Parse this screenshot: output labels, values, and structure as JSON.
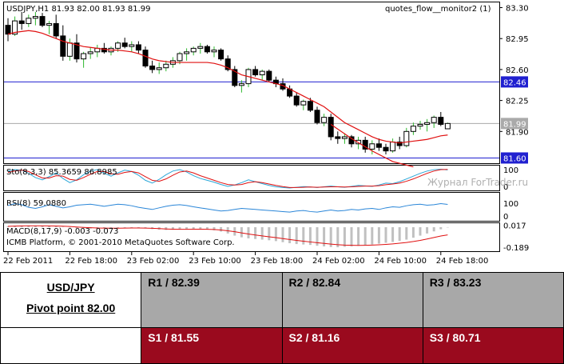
{
  "chart_data": {
    "type": "candlestick",
    "title": "USDJPY,H1  81.93 82.00 81.93 81.99",
    "indicator_label": "quotes_flow__monitor2 (1)",
    "price_ticks": [
      "83.30",
      "82.95",
      "82.60",
      "82.25",
      "81.90"
    ],
    "price_range": [
      81.55,
      83.35
    ],
    "h_lines": [
      {
        "label": "82.46",
        "value": 82.46,
        "color": "#2020d0"
      },
      {
        "label": "81.60",
        "value": 81.6,
        "color": "#2020d0"
      },
      {
        "label": "81.99",
        "value": 81.99,
        "color": "#aaaaaa"
      }
    ],
    "candles": [
      [
        83.1,
        83.18,
        82.92,
        83.0
      ],
      [
        83.0,
        83.2,
        82.98,
        83.15
      ],
      [
        83.15,
        83.25,
        83.05,
        83.12
      ],
      [
        83.12,
        83.22,
        83.08,
        83.18
      ],
      [
        83.18,
        83.25,
        83.1,
        83.2
      ],
      [
        83.2,
        83.24,
        83.08,
        83.1
      ],
      [
        83.1,
        83.15,
        83.0,
        83.12
      ],
      [
        83.12,
        83.22,
        82.95,
        82.98
      ],
      [
        82.98,
        83.1,
        82.7,
        82.75
      ],
      [
        82.75,
        82.95,
        82.7,
        82.9
      ],
      [
        82.9,
        83.0,
        82.68,
        82.72
      ],
      [
        82.72,
        82.8,
        82.62,
        82.78
      ],
      [
        82.78,
        82.85,
        82.72,
        82.8
      ],
      [
        82.8,
        82.88,
        82.74,
        82.84
      ],
      [
        82.84,
        82.9,
        82.78,
        82.8
      ],
      [
        82.8,
        82.86,
        82.76,
        82.84
      ],
      [
        82.84,
        82.92,
        82.8,
        82.9
      ],
      [
        82.9,
        82.96,
        82.84,
        82.86
      ],
      [
        82.86,
        82.92,
        82.8,
        82.88
      ],
      [
        82.88,
        82.92,
        82.78,
        82.82
      ],
      [
        82.82,
        82.86,
        82.62,
        82.64
      ],
      [
        82.64,
        82.7,
        82.56,
        82.6
      ],
      [
        82.6,
        82.68,
        82.55,
        82.62
      ],
      [
        82.62,
        82.7,
        82.58,
        82.66
      ],
      [
        82.66,
        82.74,
        82.62,
        82.7
      ],
      [
        82.7,
        82.8,
        82.66,
        82.78
      ],
      [
        82.78,
        82.84,
        82.7,
        82.8
      ],
      [
        82.8,
        82.86,
        82.76,
        82.84
      ],
      [
        82.84,
        82.9,
        82.78,
        82.86
      ],
      [
        82.86,
        82.88,
        82.78,
        82.8
      ],
      [
        82.8,
        82.86,
        82.74,
        82.82
      ],
      [
        82.82,
        82.84,
        82.7,
        82.72
      ],
      [
        82.72,
        82.76,
        82.58,
        82.6
      ],
      [
        82.6,
        82.64,
        82.4,
        82.42
      ],
      [
        82.42,
        82.48,
        82.34,
        82.44
      ],
      [
        82.44,
        82.62,
        82.4,
        82.6
      ],
      [
        82.6,
        82.64,
        82.52,
        82.54
      ],
      [
        82.54,
        82.6,
        82.48,
        82.58
      ],
      [
        82.58,
        82.6,
        82.46,
        82.48
      ],
      [
        82.48,
        82.52,
        82.4,
        82.44
      ],
      [
        82.44,
        82.5,
        82.36,
        82.38
      ],
      [
        82.38,
        82.42,
        82.28,
        82.3
      ],
      [
        82.3,
        82.34,
        82.18,
        82.2
      ],
      [
        82.2,
        82.26,
        82.14,
        82.24
      ],
      [
        82.24,
        82.28,
        82.12,
        82.14
      ],
      [
        82.14,
        82.18,
        81.98,
        82.0
      ],
      [
        82.0,
        82.1,
        81.96,
        82.06
      ],
      [
        82.06,
        82.1,
        81.8,
        81.84
      ],
      [
        81.84,
        81.9,
        81.76,
        81.82
      ],
      [
        81.82,
        81.88,
        81.76,
        81.84
      ],
      [
        81.84,
        81.86,
        81.72,
        81.76
      ],
      [
        81.76,
        81.84,
        81.7,
        81.8
      ],
      [
        81.8,
        81.84,
        81.66,
        81.7
      ],
      [
        81.7,
        81.8,
        81.64,
        81.76
      ],
      [
        81.76,
        81.82,
        81.68,
        81.72
      ],
      [
        81.72,
        81.76,
        81.64,
        81.68
      ],
      [
        81.68,
        81.82,
        81.66,
        81.78
      ],
      [
        81.78,
        81.84,
        81.7,
        81.74
      ],
      [
        81.74,
        81.94,
        81.72,
        81.9
      ],
      [
        81.9,
        82.0,
        81.86,
        81.96
      ],
      [
        81.96,
        82.02,
        81.92,
        81.98
      ],
      [
        81.98,
        82.04,
        81.9,
        82.0
      ],
      [
        82.0,
        82.08,
        81.94,
        82.06
      ],
      [
        82.06,
        82.12,
        81.96,
        81.98
      ],
      [
        81.93,
        82.0,
        81.93,
        81.99
      ]
    ],
    "ma_red": [
      83.0,
      83.02,
      83.03,
      83.04,
      83.03,
      83.01,
      82.98,
      82.95,
      82.92,
      82.9,
      82.88,
      82.86,
      82.85,
      82.84,
      82.83,
      82.82,
      82.82,
      82.81,
      82.8,
      82.78,
      82.75,
      82.72,
      82.7,
      82.69,
      82.68,
      82.68,
      82.68,
      82.68,
      82.68,
      82.68,
      82.67,
      82.65,
      82.62,
      82.58,
      82.54,
      82.52,
      82.5,
      82.48,
      82.46,
      82.44,
      82.42,
      82.38,
      82.34,
      82.3,
      82.26,
      82.22,
      82.18,
      82.12,
      82.06,
      82.0,
      81.96,
      81.92,
      81.88,
      81.84,
      81.81,
      81.79,
      81.78,
      81.77,
      81.78,
      81.79,
      81.8,
      81.81,
      81.83,
      81.85,
      81.86
    ],
    "ma_red_tail": [
      [
        47,
        81.98
      ],
      [
        50,
        81.82
      ],
      [
        53,
        81.68
      ],
      [
        56,
        81.56
      ],
      [
        59,
        81.5
      ]
    ],
    "sto": {
      "label": "Sto(8,3,3) 85.3659 86.8985",
      "ticks": [
        "100",
        "0"
      ],
      "main": [
        80,
        86,
        84,
        70,
        52,
        42,
        56,
        72,
        48,
        30,
        42,
        64,
        80,
        86,
        70,
        58,
        72,
        84,
        78,
        62,
        40,
        28,
        44,
        64,
        80,
        86,
        76,
        60,
        48,
        40,
        32,
        22,
        14,
        20,
        30,
        42,
        34,
        26,
        18,
        12,
        9,
        7,
        10,
        13,
        11,
        9,
        12,
        15,
        12,
        10,
        14,
        18,
        16,
        14,
        20,
        28,
        26,
        34,
        46,
        58,
        70,
        80,
        86,
        88,
        85
      ],
      "signal": [
        74,
        80,
        84,
        78,
        64,
        50,
        50,
        60,
        58,
        44,
        40,
        52,
        66,
        78,
        78,
        68,
        66,
        74,
        78,
        72,
        56,
        40,
        36,
        46,
        62,
        76,
        80,
        72,
        60,
        50,
        40,
        30,
        22,
        20,
        22,
        30,
        34,
        30,
        24,
        18,
        13,
        9,
        9,
        10,
        11,
        10,
        11,
        12,
        12,
        11,
        12,
        14,
        15,
        15,
        17,
        21,
        24,
        28,
        36,
        46,
        58,
        70,
        80,
        86,
        87
      ]
    },
    "rsi": {
      "label": "RSI(8) 59.0880",
      "ticks": [
        "100",
        "0"
      ],
      "values": [
        55,
        62,
        58,
        48,
        44,
        50,
        58,
        52,
        46,
        50,
        56,
        58,
        60,
        56,
        52,
        56,
        60,
        58,
        54,
        48,
        44,
        40,
        46,
        52,
        56,
        58,
        55,
        50,
        46,
        42,
        38,
        34,
        36,
        40,
        44,
        42,
        40,
        38,
        36,
        34,
        32,
        30,
        34,
        36,
        32,
        30,
        34,
        38,
        34,
        36,
        40,
        38,
        42,
        44,
        40,
        46,
        50,
        48,
        54,
        58,
        60,
        56,
        58,
        62,
        59
      ]
    },
    "macd": {
      "label": "MACD(8,17,9) -0.003 -0.073",
      "credit": "ICMB Platform, © 2001-2010 MetaQuotes Software Corp.",
      "ticks": [
        "0.017",
        "-0.189"
      ],
      "range": [
        -0.22,
        0.03
      ],
      "hist": [
        0.01,
        0.014,
        0.016,
        0.016,
        0.014,
        0.012,
        0.01,
        0.008,
        0.004,
        -0.004,
        -0.01,
        -0.012,
        -0.014,
        -0.014,
        -0.012,
        -0.01,
        -0.008,
        -0.006,
        -0.006,
        -0.008,
        -0.012,
        -0.018,
        -0.024,
        -0.026,
        -0.024,
        -0.02,
        -0.018,
        -0.016,
        -0.018,
        -0.022,
        -0.03,
        -0.042,
        -0.06,
        -0.08,
        -0.096,
        -0.106,
        -0.112,
        -0.118,
        -0.124,
        -0.132,
        -0.142,
        -0.152,
        -0.16,
        -0.164,
        -0.168,
        -0.176,
        -0.182,
        -0.188,
        -0.19,
        -0.186,
        -0.182,
        -0.176,
        -0.17,
        -0.164,
        -0.156,
        -0.148,
        -0.14,
        -0.13,
        -0.118,
        -0.1,
        -0.08,
        -0.06,
        -0.04,
        -0.02,
        -0.003
      ],
      "signal": [
        0.008,
        0.01,
        0.012,
        0.013,
        0.013,
        0.013,
        0.012,
        0.011,
        0.009,
        0.006,
        0.002,
        -0.002,
        -0.005,
        -0.008,
        -0.009,
        -0.01,
        -0.01,
        -0.009,
        -0.008,
        -0.008,
        -0.009,
        -0.011,
        -0.014,
        -0.017,
        -0.019,
        -0.02,
        -0.02,
        -0.019,
        -0.019,
        -0.02,
        -0.022,
        -0.027,
        -0.034,
        -0.043,
        -0.054,
        -0.065,
        -0.074,
        -0.083,
        -0.091,
        -0.099,
        -0.108,
        -0.117,
        -0.125,
        -0.133,
        -0.14,
        -0.147,
        -0.154,
        -0.16,
        -0.166,
        -0.17,
        -0.172,
        -0.173,
        -0.172,
        -0.17,
        -0.167,
        -0.163,
        -0.158,
        -0.152,
        -0.145,
        -0.136,
        -0.125,
        -0.112,
        -0.098,
        -0.084,
        -0.073
      ]
    },
    "x_labels": [
      {
        "text": "22 Feb 2011",
        "index": 0
      },
      {
        "text": "22 Feb 18:00",
        "index": 9
      },
      {
        "text": "23 Feb 02:00",
        "index": 18
      },
      {
        "text": "23 Feb 10:00",
        "index": 27
      },
      {
        "text": "23 Feb 18:00",
        "index": 36
      },
      {
        "text": "24 Feb 02:00",
        "index": 45
      },
      {
        "text": "24 Feb 10:00",
        "index": 54
      },
      {
        "text": "24 Feb 18:00",
        "index": 63
      }
    ],
    "watermark": "Журнал ForTrader.ru"
  },
  "pivot_table": {
    "symbol": "USD/JPY",
    "pivot": "Pivot point 82.00",
    "r1": "R1 / 82.39",
    "r2": "R2 / 82.84",
    "r3": "R3 / 83.23",
    "s1": "S1 / 81.55",
    "s2": "S2 / 81.16",
    "s3": "S3 / 80.71"
  }
}
